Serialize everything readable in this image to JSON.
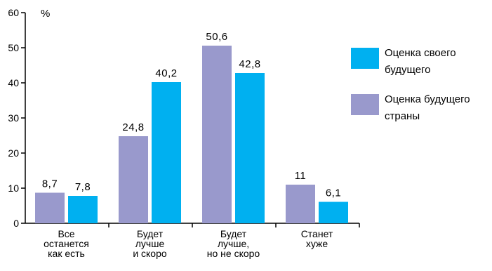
{
  "chart_data": {
    "type": "bar",
    "unit_label": "%",
    "ylim": [
      0,
      60
    ],
    "yticks": [
      0,
      10,
      20,
      30,
      40,
      50,
      60
    ],
    "categories": [
      [
        "Все",
        "останется",
        "как есть"
      ],
      [
        "Будет",
        "лучше",
        "и скоро"
      ],
      [
        "Будет",
        "лучше,",
        "но не скоро"
      ],
      [
        "Станет",
        "хуже"
      ]
    ],
    "series": [
      {
        "name": "Оценка будущего страны",
        "legend_lines": [
          "Оценка будущего",
          "страны"
        ],
        "color": "#9999cc",
        "values": [
          8.7,
          24.8,
          50.6,
          11
        ],
        "labels": [
          "8,7",
          "24,8",
          "50,6",
          "11"
        ]
      },
      {
        "name": "Оценка своего будущего",
        "legend_lines": [
          "Оценка своего",
          "будущего"
        ],
        "color": "#00b0f0",
        "values": [
          7.8,
          40.2,
          42.8,
          6.1
        ],
        "labels": [
          "7,8",
          "40,2",
          "42,8",
          "6,1"
        ]
      }
    ],
    "legend_order": [
      1,
      0
    ],
    "legend_position": "right",
    "grid": false
  }
}
